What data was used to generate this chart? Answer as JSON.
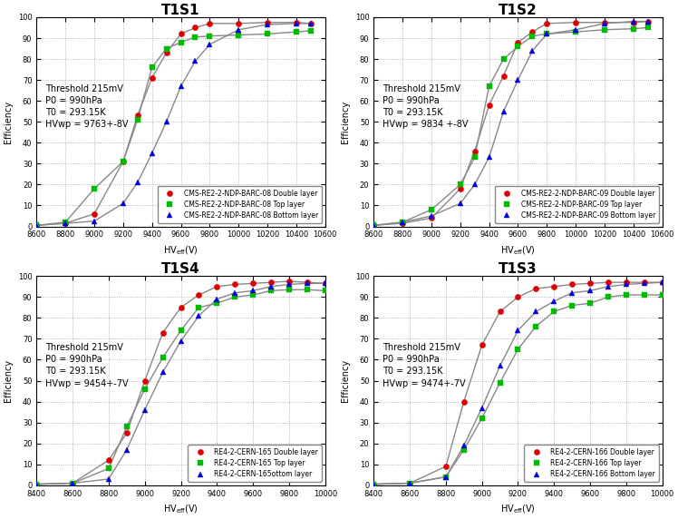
{
  "panels": [
    {
      "title": "T1S1",
      "row": 0,
      "col": 0,
      "annotation": "Threshold 215mV\nP0 = 990hPa\nT0 = 293.15K\nHVwp = 9763+-8V",
      "xmin": 8600,
      "xmax": 10560,
      "xticks": [
        8600,
        8800,
        9000,
        9200,
        9400,
        9600,
        9800,
        10000,
        10200,
        10400,
        10600
      ],
      "series": [
        {
          "label": "CMS-RE2-2-NDP-BARC-08 Double layer",
          "color": "#dd0000",
          "line_color": "#888888",
          "marker": "o",
          "x": [
            8600,
            8800,
            9000,
            9200,
            9300,
            9400,
            9500,
            9600,
            9700,
            9800,
            10000,
            10200,
            10400,
            10500
          ],
          "y": [
            0.5,
            1.5,
            6.0,
            31.0,
            53.0,
            71.0,
            83.0,
            92.0,
            95.0,
            97.0,
            97.0,
            97.5,
            97.5,
            97.0
          ]
        },
        {
          "label": "CMS-RE2-2-NDP-BARC-08 Top layer",
          "color": "#00bb00",
          "line_color": "#888888",
          "marker": "s",
          "x": [
            8600,
            8800,
            9000,
            9200,
            9300,
            9400,
            9500,
            9600,
            9700,
            9800,
            10000,
            10200,
            10400,
            10500
          ],
          "y": [
            0.5,
            2.0,
            18.0,
            31.0,
            51.0,
            76.0,
            85.0,
            88.0,
            90.5,
            91.0,
            91.5,
            92.0,
            93.0,
            93.5
          ]
        },
        {
          "label": "CMS-RE2-2-NDP-BARC-08 Bottom layer",
          "color": "#0000dd",
          "line_color": "#888888",
          "marker": "^",
          "x": [
            8600,
            8800,
            9000,
            9200,
            9300,
            9400,
            9500,
            9600,
            9700,
            9800,
            10000,
            10200,
            10400,
            10500
          ],
          "y": [
            0.5,
            1.5,
            2.5,
            11.0,
            21.0,
            35.0,
            50.0,
            67.0,
            79.0,
            87.0,
            94.0,
            96.5,
            97.0,
            97.0
          ]
        }
      ]
    },
    {
      "title": "T1S2",
      "row": 0,
      "col": 1,
      "annotation": "Threshold 215mV\nP0 = 990hPa\nT0 = 293.15K\nHVwp = 9834 +-8V",
      "xmin": 8600,
      "xmax": 10560,
      "xticks": [
        8600,
        8800,
        9000,
        9200,
        9400,
        9600,
        9800,
        10000,
        10200,
        10400,
        10600
      ],
      "series": [
        {
          "label": "CMS-RE2-2-NDP-BARC-09 Double layer",
          "color": "#dd0000",
          "line_color": "#888888",
          "marker": "o",
          "x": [
            8600,
            8800,
            9000,
            9200,
            9300,
            9400,
            9500,
            9600,
            9700,
            9800,
            10000,
            10200,
            10400,
            10500
          ],
          "y": [
            0.5,
            1.5,
            4.0,
            18.0,
            36.0,
            58.0,
            72.0,
            88.0,
            93.0,
            97.0,
            97.5,
            97.5,
            97.5,
            98.0
          ]
        },
        {
          "label": "CMS-RE2-2-NDP-BARC-09 Top layer",
          "color": "#00bb00",
          "line_color": "#888888",
          "marker": "s",
          "x": [
            8600,
            8800,
            9000,
            9200,
            9300,
            9400,
            9500,
            9600,
            9700,
            9800,
            10000,
            10200,
            10400,
            10500
          ],
          "y": [
            0.5,
            2.0,
            8.0,
            20.0,
            33.0,
            67.0,
            80.0,
            86.0,
            91.0,
            92.0,
            93.0,
            94.0,
            94.5,
            95.0
          ]
        },
        {
          "label": "CMS-RE2-2-NDP-BARC-09 Bottom layer",
          "color": "#0000dd",
          "line_color": "#888888",
          "marker": "^",
          "x": [
            8600,
            8800,
            9000,
            9200,
            9300,
            9400,
            9500,
            9600,
            9700,
            9800,
            10000,
            10200,
            10400,
            10500
          ],
          "y": [
            0.5,
            2.0,
            5.0,
            11.0,
            20.0,
            33.0,
            55.0,
            70.0,
            84.0,
            92.0,
            94.0,
            97.0,
            98.0,
            98.0
          ]
        }
      ]
    },
    {
      "title": "T1S4",
      "row": 1,
      "col": 0,
      "annotation": "Threshold 215mV\nP0 = 990hPa\nT0 = 293.15K\nHVwp = 9454+-7V",
      "xmin": 8400,
      "xmax": 10000,
      "xticks": [
        8400,
        8600,
        8800,
        9000,
        9200,
        9400,
        9600,
        9800,
        10000
      ],
      "series": [
        {
          "label": "RE4-2-CERN-165 Double layer",
          "color": "#dd0000",
          "line_color": "#888888",
          "marker": "o",
          "x": [
            8400,
            8600,
            8800,
            8900,
            9000,
            9100,
            9200,
            9300,
            9400,
            9500,
            9600,
            9700,
            9800,
            9900,
            10000
          ],
          "y": [
            0.5,
            1.0,
            12.0,
            25.0,
            50.0,
            73.0,
            85.0,
            91.0,
            95.0,
            96.0,
            96.5,
            97.0,
            97.5,
            97.0,
            96.5
          ]
        },
        {
          "label": "RE4-2-CERN-165 Top layer",
          "color": "#00bb00",
          "line_color": "#888888",
          "marker": "s",
          "x": [
            8400,
            8600,
            8800,
            8900,
            9000,
            9100,
            9200,
            9300,
            9400,
            9500,
            9600,
            9700,
            9800,
            9900,
            10000
          ],
          "y": [
            0.5,
            1.0,
            8.0,
            28.0,
            46.0,
            61.0,
            74.0,
            85.0,
            87.0,
            90.0,
            91.0,
            93.0,
            93.5,
            93.5,
            93.0
          ]
        },
        {
          "label": "RE4-2-CERN-165ottom layer",
          "color": "#0000dd",
          "line_color": "#888888",
          "marker": "^",
          "x": [
            8400,
            8600,
            8800,
            8900,
            9000,
            9100,
            9200,
            9300,
            9400,
            9500,
            9600,
            9700,
            9800,
            9900,
            10000
          ],
          "y": [
            0.5,
            1.0,
            3.0,
            17.0,
            36.0,
            54.0,
            69.0,
            81.0,
            89.0,
            92.0,
            93.0,
            95.0,
            96.0,
            96.5,
            96.5
          ]
        }
      ]
    },
    {
      "title": "T1S3",
      "row": 1,
      "col": 1,
      "annotation": "Threshold 215mV\nP0 = 990hPa\nT0 = 293.15K\nHVwp = 9474+-7V",
      "xmin": 8400,
      "xmax": 10000,
      "xticks": [
        8400,
        8600,
        8800,
        9000,
        9200,
        9400,
        9600,
        9800,
        10000
      ],
      "series": [
        {
          "label": "RE4-2-CERN-166 Double layer",
          "color": "#dd0000",
          "line_color": "#888888",
          "marker": "o",
          "x": [
            8400,
            8600,
            8800,
            8900,
            9000,
            9100,
            9200,
            9300,
            9400,
            9500,
            9600,
            9700,
            9800,
            9900,
            10000
          ],
          "y": [
            0.5,
            1.0,
            9.0,
            40.0,
            67.0,
            83.0,
            90.0,
            94.0,
            95.0,
            96.0,
            96.5,
            97.0,
            97.0,
            97.0,
            97.0
          ]
        },
        {
          "label": "RE4-2-CERN-166 Top layer",
          "color": "#00bb00",
          "line_color": "#888888",
          "marker": "s",
          "x": [
            8400,
            8600,
            8800,
            8900,
            9000,
            9100,
            9200,
            9300,
            9400,
            9500,
            9600,
            9700,
            9800,
            9900,
            10000
          ],
          "y": [
            0.5,
            1.0,
            4.0,
            17.0,
            32.0,
            49.0,
            65.0,
            76.0,
            83.0,
            86.0,
            87.0,
            90.0,
            91.0,
            91.0,
            91.0
          ]
        },
        {
          "label": "RE4-2-CERN-166 Bottom layer",
          "color": "#0000dd",
          "line_color": "#888888",
          "marker": "^",
          "x": [
            8400,
            8600,
            8800,
            8900,
            9000,
            9100,
            9200,
            9300,
            9400,
            9500,
            9600,
            9700,
            9800,
            9900,
            10000
          ],
          "y": [
            0.5,
            1.0,
            4.0,
            19.0,
            37.0,
            57.0,
            74.0,
            83.0,
            88.0,
            92.0,
            93.0,
            95.0,
            96.0,
            96.5,
            97.0
          ]
        }
      ]
    }
  ],
  "ylabel": "Efficiency",
  "background_color": "#ffffff",
  "grid_color": "#999999",
  "legend_fontsize": 5.5,
  "axis_fontsize": 7,
  "title_fontsize": 11,
  "annotation_fontsize": 7
}
